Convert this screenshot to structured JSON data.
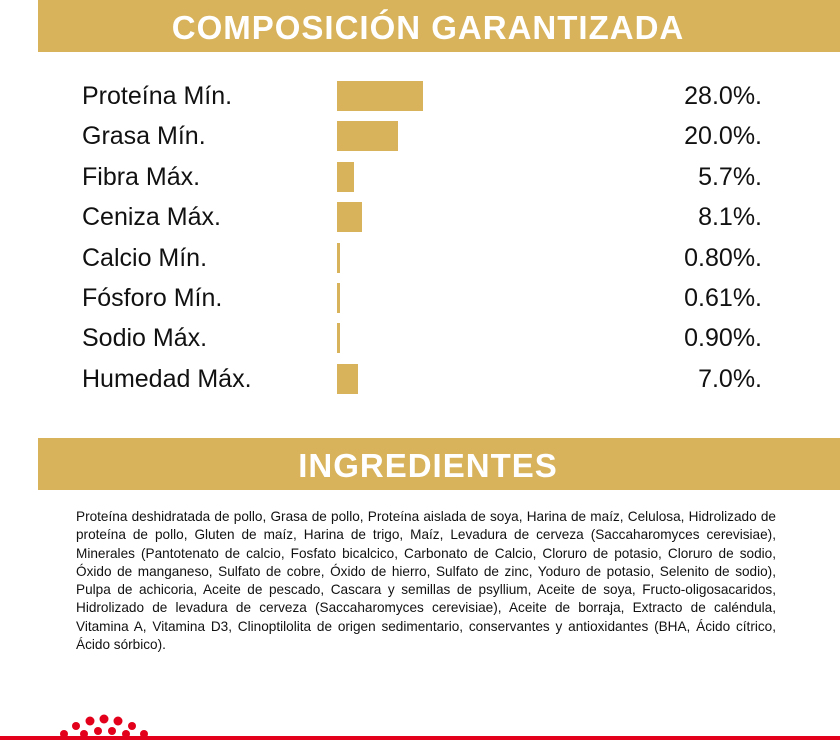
{
  "composition": {
    "title": "COMPOSICIÓN GARANTIZADA",
    "rows": [
      {
        "label": "Proteína Mín.",
        "value": 28.0,
        "value_label": "28.0%."
      },
      {
        "label": "Grasa Mín.",
        "value": 20.0,
        "value_label": "20.0%."
      },
      {
        "label": "Fibra Máx.",
        "value": 5.7,
        "value_label": "5.7%."
      },
      {
        "label": "Ceniza Máx.",
        "value": 8.1,
        "value_label": "8.1%."
      },
      {
        "label": "Calcio Mín.",
        "value": 0.8,
        "value_label": "0.80%."
      },
      {
        "label": "Fósforo Mín.",
        "value": 0.61,
        "value_label": "0.61%."
      },
      {
        "label": "Sodio Máx.",
        "value": 0.9,
        "value_label": "0.90%."
      },
      {
        "label": "Humedad Máx.",
        "value": 7.0,
        "value_label": "7.0%."
      }
    ]
  },
  "ingredients": {
    "title": "INGREDIENTES",
    "text": "Proteína deshidratada de pollo, Grasa de pollo, Proteína aislada de soya, Harina de maíz, Celulosa, Hidrolizado de proteína de pollo, Gluten de maíz, Harina de trigo, Maíz, Levadura de cerveza (Saccaharomyces cerevisiae), Minerales (Pantotenato de calcio, Fosfato bicalcico, Carbonato de Calcio, Cloruro de potasio, Cloruro de sodio, Óxido de manganeso, Sulfato de cobre, Óxido de hierro, Sulfato de zinc, Yoduro de potasio, Selenito de sodio), Pulpa de achicoria, Aceite de pescado, Cascara y semillas de psyllium, Aceite de soya, Fructo-oligosacaridos, Hidrolizado de levadura de cerveza (Saccaharomyces cerevisiae), Aceite de borraja, Extracto de caléndula, Vitamina A, Vitamina D3, Clinoptilolita de origen sedimentario, conservantes y antioxidantes (BHA, Ácido cítrico, Ácido sórbico)."
  }
}
